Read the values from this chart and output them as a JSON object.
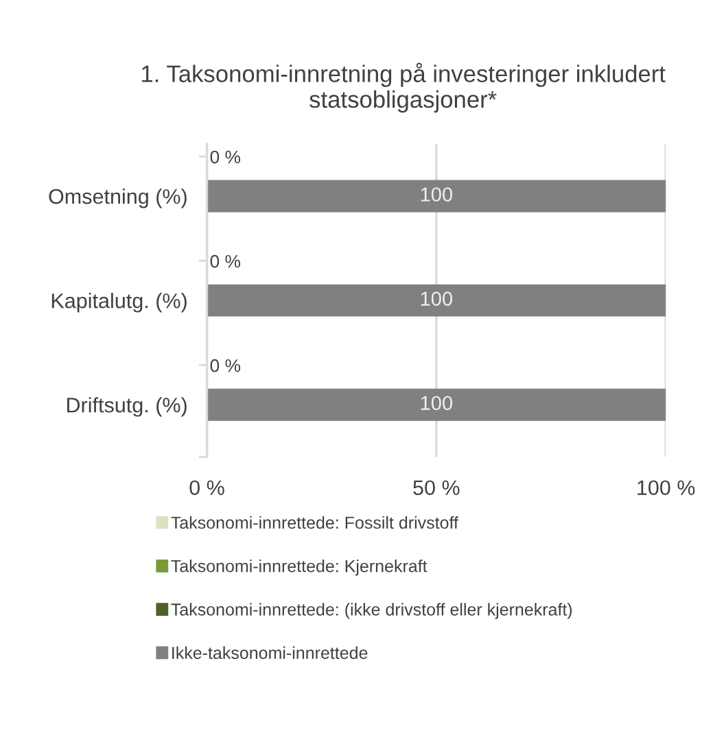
{
  "chart_data": {
    "type": "bar",
    "orientation": "horizontal",
    "stacked": false,
    "title": "1. Taksonomi-innretning på investeringer inkludert statsobligasjoner*",
    "categories": [
      "Omsetning (%)",
      "Kapitalutg. (%)",
      "Driftsutg. (%)"
    ],
    "series": [
      {
        "name": "Taksonomi-innrettede: Fossilt drivstoff",
        "color": "#d9e3c1",
        "values": [
          0,
          0,
          0
        ]
      },
      {
        "name": "Taksonomi-innrettede: Kjernekraft",
        "color": "#7a9a3a",
        "values": [
          0,
          0,
          0
        ]
      },
      {
        "name": "Taksonomi-innrettede: (ikke drivstoff eller kjernekraft)",
        "color": "#4e6228",
        "values": [
          0,
          0,
          0
        ],
        "value_labels": [
          "0 %",
          "0 %",
          "0 %"
        ]
      },
      {
        "name": "Ikke-taksonomi-innrettede",
        "color": "#808080",
        "values": [
          100,
          100,
          100
        ],
        "value_labels": [
          "100",
          "100",
          "100"
        ]
      }
    ],
    "xlim": [
      0,
      100
    ],
    "xticks": [
      {
        "value": 0,
        "label": "0 %"
      },
      {
        "value": 50,
        "label": "50 %"
      },
      {
        "value": 100,
        "label": "100 %"
      }
    ],
    "grid": "x",
    "legend": "bottom"
  }
}
